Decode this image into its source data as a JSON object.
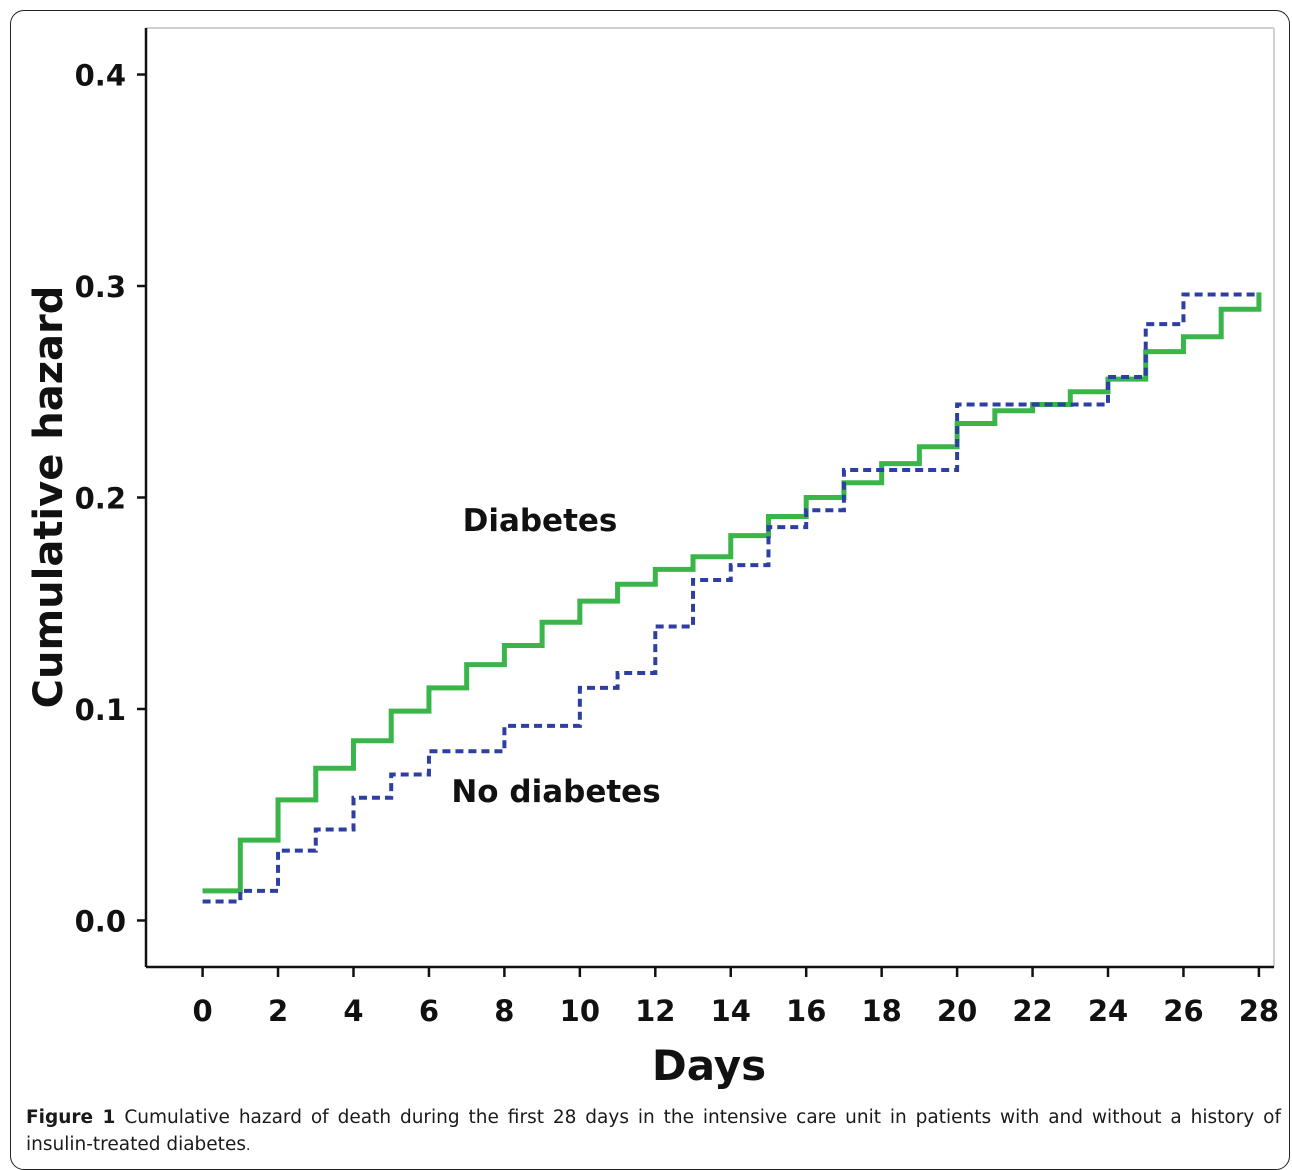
{
  "chart_data": {
    "type": "line",
    "step": true,
    "xlabel": "Days",
    "ylabel": "Cumulative hazard",
    "xlim": [
      -1.5,
      28.4
    ],
    "ylim": [
      -0.022,
      0.422
    ],
    "xticks": [
      "0",
      "2",
      "4",
      "6",
      "8",
      "10",
      "12",
      "14",
      "16",
      "18",
      "20",
      "22",
      "24",
      "26",
      "28"
    ],
    "yticks": [
      "0.0",
      "0.1",
      "0.2",
      "0.3",
      "0.4"
    ],
    "grid": false,
    "annotations": [
      "Diabetes",
      "No diabetes"
    ],
    "series": [
      {
        "name": "Diabetes",
        "color": "#3ab54a",
        "style": "solid",
        "x": [
          0,
          1,
          2,
          3,
          4,
          5,
          6,
          7,
          8,
          9,
          10,
          11,
          12,
          13,
          14,
          15,
          16,
          17,
          18,
          19,
          20,
          21,
          22,
          23,
          24,
          25,
          26,
          27,
          28
        ],
        "y": [
          0.014,
          0.038,
          0.057,
          0.072,
          0.085,
          0.099,
          0.11,
          0.121,
          0.13,
          0.141,
          0.151,
          0.159,
          0.166,
          0.172,
          0.182,
          0.191,
          0.2,
          0.207,
          0.216,
          0.224,
          0.235,
          0.241,
          0.244,
          0.25,
          0.256,
          0.269,
          0.276,
          0.289,
          0.297
        ]
      },
      {
        "name": "No diabetes",
        "color": "#2e3fa3",
        "style": "dotted",
        "x": [
          0,
          1,
          2,
          3,
          4,
          5,
          6,
          7,
          8,
          9,
          10,
          11,
          12,
          13,
          14,
          15,
          16,
          17,
          18,
          19,
          20,
          21,
          22,
          23,
          24,
          25,
          26,
          27,
          28
        ],
        "y": [
          0.009,
          0.014,
          0.033,
          0.043,
          0.058,
          0.069,
          0.08,
          0.08,
          0.092,
          0.092,
          0.11,
          0.117,
          0.139,
          0.161,
          0.168,
          0.186,
          0.194,
          0.213,
          0.213,
          0.213,
          0.244,
          0.244,
          0.244,
          0.244,
          0.257,
          0.282,
          0.296,
          0.296,
          0.296
        ]
      }
    ]
  },
  "caption": {
    "label": "Figure 1",
    "text": "Cumulative hazard of death during the first 28 days in the intensive care unit in patients with and without a history of insulin-treated diabetes",
    "end": "."
  }
}
